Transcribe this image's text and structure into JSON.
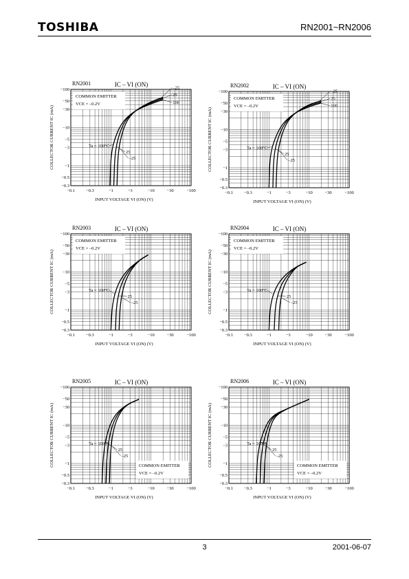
{
  "header": {
    "brand": "TOSHIBA",
    "doc_title": "RN2001~RN2006"
  },
  "footer": {
    "page_number": "3",
    "date": "2001-06-07"
  },
  "chart_data": [
    {
      "type": "line",
      "panel_label": "RN2001",
      "title": "IC – VI (ON)",
      "xlabel": "INPUT VOLTAGE VI (ON) (V)",
      "ylabel": "COLLECTOR CURRENT IC (mA)",
      "x_scale": "log",
      "y_scale": "log",
      "xlim": [
        -0.1,
        -100
      ],
      "ylim": [
        -0.3,
        -100
      ],
      "x_ticks": [
        "-0.1",
        "-0.3",
        "-1",
        "-3",
        "-10",
        "-30",
        "-100"
      ],
      "y_ticks": [
        "-100",
        "-50",
        "-30",
        "-10",
        "-5",
        "-3",
        "-1",
        "-0.5",
        "-0.3"
      ],
      "conditions": [
        "COMMON EMITTER",
        "VCE = –0.2V"
      ],
      "conditions_pos": "top-left",
      "series": [
        {
          "name": "Ta = 100°C",
          "label_lo": "Ta = 100°C",
          "label_hi": "100",
          "x": [
            -0.95,
            -1.0,
            -1.3,
            -2.0,
            -4.0,
            -10.0,
            -20.0
          ],
          "y": [
            -0.3,
            -2.0,
            -6.0,
            -15.0,
            -28.0,
            -42.0,
            -54.0
          ]
        },
        {
          "name": "25",
          "label_lo": "25",
          "label_hi": "25",
          "x": [
            -1.18,
            -1.25,
            -1.55,
            -2.2,
            -4.0,
            -10.0,
            -20.0
          ],
          "y": [
            -0.3,
            -2.0,
            -6.0,
            -15.0,
            -28.0,
            -45.0,
            -58.0
          ]
        },
        {
          "name": "–25",
          "label_lo": "–25",
          "label_hi": "–25",
          "x": [
            -1.42,
            -1.5,
            -1.8,
            -2.45,
            -4.0,
            -10.0,
            -20.0
          ],
          "y": [
            -0.3,
            -2.0,
            -6.0,
            -15.0,
            -28.0,
            -48.0,
            -62.0
          ]
        }
      ]
    },
    {
      "type": "line",
      "panel_label": "RN2002",
      "title": "IC – VI (ON)",
      "xlabel": "INPUT VOLTAGE VI (ON) (V)",
      "ylabel": "COLLECTOR CURRENT IC (mA)",
      "x_scale": "log",
      "y_scale": "log",
      "xlim": [
        -0.1,
        -100
      ],
      "ylim": [
        -0.3,
        -100
      ],
      "x_ticks": [
        "-0.1",
        "-0.3",
        "-1",
        "-3",
        "-10",
        "-30",
        "-100"
      ],
      "y_ticks": [
        "-100",
        "-50",
        "-30",
        "-10",
        "-5",
        "-3",
        "-1",
        "-0.5",
        "-0.3"
      ],
      "conditions": [
        "COMMON EMITTER",
        "VCE = –0.2V"
      ],
      "conditions_pos": "top-left",
      "series": [
        {
          "name": "Ta = 100°C",
          "label_lo": "Ta = 100°C",
          "label_hi": "100",
          "x": [
            -1.0,
            -1.05,
            -1.4,
            -2.2,
            -4.5,
            -10.0,
            -20.0
          ],
          "y": [
            -0.3,
            -2.0,
            -6.0,
            -15.0,
            -28.0,
            -40.0,
            -50.0
          ]
        },
        {
          "name": "25",
          "label_lo": "25",
          "label_hi": "25",
          "x": [
            -1.25,
            -1.3,
            -1.65,
            -2.45,
            -4.5,
            -10.0,
            -20.0
          ],
          "y": [
            -0.3,
            -2.0,
            -6.0,
            -15.0,
            -28.0,
            -43.0,
            -53.0
          ]
        },
        {
          "name": "–25",
          "label_lo": "–25",
          "label_hi": "–25",
          "x": [
            -1.5,
            -1.6,
            -1.95,
            -2.7,
            -4.5,
            -10.0,
            -20.0
          ],
          "y": [
            -0.3,
            -2.0,
            -6.0,
            -15.0,
            -28.0,
            -46.0,
            -57.0
          ]
        }
      ]
    },
    {
      "type": "line",
      "panel_label": "RN2003",
      "title": "IC – VI (ON)",
      "xlabel": "INPUT VOLTAGE VI (ON) (V)",
      "ylabel": "COLLECTOR CURRENT IC (mA)",
      "x_scale": "log",
      "y_scale": "log",
      "xlim": [
        -0.1,
        -100
      ],
      "ylim": [
        -0.3,
        -100
      ],
      "x_ticks": [
        "-0.1",
        "-0.3",
        "-1",
        "-3",
        "-10",
        "-30",
        "-100"
      ],
      "y_ticks": [
        "-100",
        "-50",
        "-30",
        "-10",
        "-5",
        "-3",
        "-1",
        "-0.5",
        "-0.3"
      ],
      "conditions": [
        "COMMON EMITTER",
        "VCE = –0.2V"
      ],
      "conditions_pos": "top-left",
      "series": [
        {
          "name": "Ta = 100°C",
          "label_lo": "Ta = 100°C",
          "x": [
            -1.0,
            -1.08,
            -1.5,
            -2.5,
            -5.0,
            -8.5
          ],
          "y": [
            -0.3,
            -1.5,
            -5.0,
            -11.0,
            -20.0,
            -28.0
          ]
        },
        {
          "name": "25",
          "label_lo": "25",
          "x": [
            -1.3,
            -1.38,
            -1.8,
            -2.8,
            -5.0,
            -8.5
          ],
          "y": [
            -0.3,
            -1.5,
            -5.0,
            -11.0,
            -20.0,
            -28.0
          ]
        },
        {
          "name": "–25",
          "label_lo": "–25",
          "x": [
            -1.6,
            -1.7,
            -2.15,
            -3.1,
            -5.0,
            -8.5
          ],
          "y": [
            -0.3,
            -1.5,
            -5.0,
            -11.0,
            -20.0,
            -28.0
          ]
        }
      ]
    },
    {
      "type": "line",
      "panel_label": "RN2004",
      "title": "IC – VI (ON)",
      "xlabel": "INPUT VOLTAGE VI (ON) (V)",
      "ylabel": "COLLECTOR CURRENT IC (mA)",
      "x_scale": "log",
      "y_scale": "log",
      "xlim": [
        -0.1,
        -100
      ],
      "ylim": [
        -0.3,
        -100
      ],
      "x_ticks": [
        "-0.1",
        "-0.3",
        "-1",
        "-3",
        "-10",
        "-30",
        "-100"
      ],
      "y_ticks": [
        "-100",
        "-50",
        "-30",
        "-10",
        "-5",
        "-3",
        "-1",
        "-0.5",
        "-0.3"
      ],
      "conditions": [
        "COMMON EMITTER",
        "VCE = –0.2V"
      ],
      "conditions_pos": "top-left",
      "series": [
        {
          "name": "Ta = 100°C",
          "label_lo": "Ta = 100°C",
          "x": [
            -1.0,
            -1.08,
            -1.55,
            -2.7,
            -5.0,
            -8.5
          ],
          "y": [
            -0.3,
            -1.5,
            -4.5,
            -9.0,
            -14.0,
            -18.0
          ]
        },
        {
          "name": "25",
          "label_lo": "25",
          "x": [
            -1.35,
            -1.45,
            -1.95,
            -3.1,
            -5.0,
            -8.5
          ],
          "y": [
            -0.3,
            -1.5,
            -4.5,
            -9.0,
            -14.0,
            -18.0
          ]
        },
        {
          "name": "–25",
          "label_lo": "–25",
          "x": [
            -1.75,
            -1.85,
            -2.35,
            -3.5,
            -5.0,
            -8.5
          ],
          "y": [
            -0.3,
            -1.5,
            -4.5,
            -9.0,
            -14.0,
            -18.0
          ]
        }
      ]
    },
    {
      "type": "line",
      "panel_label": "RN2005",
      "title": "IC – VI (ON)",
      "xlabel": "INPUT VOLTAGE VI (ON) (V)",
      "ylabel": "COLLECTOR CURRENT IC (mA)",
      "x_scale": "log",
      "y_scale": "log",
      "xlim": [
        -0.1,
        -100
      ],
      "ylim": [
        -0.3,
        -100
      ],
      "x_ticks": [
        "-0.1",
        "-0.3",
        "-1",
        "-3",
        "-10",
        "-30",
        "-100"
      ],
      "y_ticks": [
        "-100",
        "-50",
        "-30",
        "-10",
        "-5",
        "-3",
        "-1",
        "-0.5",
        "-0.3"
      ],
      "conditions": [
        "COMMON EMITTER",
        "VCE = –0.2V"
      ],
      "conditions_pos": "bottom-right",
      "series": [
        {
          "name": "Ta = 100°C",
          "label_lo": "Ta = 100°C",
          "x": [
            -0.6,
            -0.65,
            -0.85,
            -1.3,
            -2.5,
            -5.0
          ],
          "y": [
            -0.3,
            -2.0,
            -8.0,
            -20.0,
            -35.0,
            -48.0
          ]
        },
        {
          "name": "25",
          "label_lo": "25",
          "x": [
            -0.75,
            -0.8,
            -1.0,
            -1.45,
            -2.5,
            -5.0
          ],
          "y": [
            -0.3,
            -2.0,
            -8.0,
            -20.0,
            -35.0,
            -48.0
          ]
        },
        {
          "name": "–25",
          "label_lo": "–25",
          "x": [
            -0.92,
            -0.97,
            -1.15,
            -1.6,
            -2.5,
            -5.0
          ],
          "y": [
            -0.3,
            -2.0,
            -8.0,
            -20.0,
            -35.0,
            -48.0
          ]
        }
      ]
    },
    {
      "type": "line",
      "panel_label": "RN2006",
      "title": "IC – VI (ON)",
      "xlabel": "INPUT VOLTAGE VI (ON) (V)",
      "ylabel": "COLLECTOR CURRENT IC (mA)",
      "x_scale": "log",
      "y_scale": "log",
      "xlim": [
        -0.1,
        -100
      ],
      "ylim": [
        -0.3,
        -100
      ],
      "x_ticks": [
        "-0.1",
        "-0.3",
        "-1",
        "-3",
        "-10",
        "-30",
        "-100"
      ],
      "y_ticks": [
        "-100",
        "-50",
        "-30",
        "-10",
        "-5",
        "-3",
        "-1",
        "-0.5",
        "-0.3"
      ],
      "conditions": [
        "COMMON EMITTER",
        "VCE = –0.2V"
      ],
      "conditions_pos": "bottom-right",
      "series": [
        {
          "name": "Ta = 100°C",
          "label_lo": "Ta = 100°C",
          "x": [
            -0.48,
            -0.52,
            -0.75,
            -1.2,
            -3.0,
            -10.0
          ],
          "y": [
            -0.3,
            -2.0,
            -8.0,
            -18.0,
            -28.0,
            -48.0
          ]
        },
        {
          "name": "25",
          "label_lo": "25",
          "x": [
            -0.6,
            -0.64,
            -0.88,
            -1.3,
            -3.0,
            -10.0
          ],
          "y": [
            -0.3,
            -2.0,
            -8.0,
            -18.0,
            -28.0,
            -48.0
          ]
        },
        {
          "name": "–25",
          "label_lo": "–25",
          "x": [
            -0.75,
            -0.8,
            -1.02,
            -1.42,
            -3.0,
            -10.0
          ],
          "y": [
            -0.3,
            -2.0,
            -8.0,
            -18.0,
            -28.0,
            -48.0
          ]
        }
      ]
    }
  ]
}
